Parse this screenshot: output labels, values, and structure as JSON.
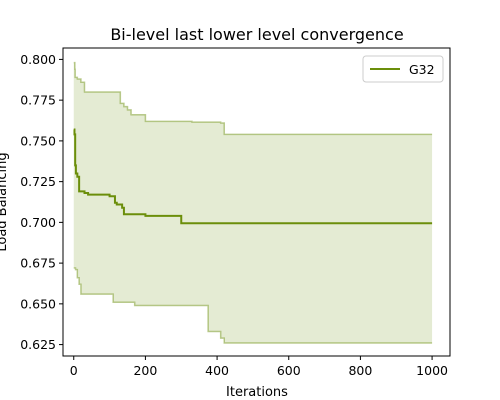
{
  "chart_data": {
    "type": "line",
    "title": "Bi-level last lower level convergence",
    "xlabel": "Iterations",
    "ylabel": "Load Balancing",
    "xlim": [
      -30,
      1050
    ],
    "ylim": [
      0.618,
      0.807
    ],
    "xticks": [
      0,
      200,
      400,
      600,
      800,
      1000
    ],
    "yticks": [
      0.625,
      0.65,
      0.675,
      0.7,
      0.725,
      0.75,
      0.775,
      0.8
    ],
    "xtick_labels": [
      "0",
      "200",
      "400",
      "600",
      "800",
      "1000"
    ],
    "ytick_labels": [
      "0.625",
      "0.650",
      "0.675",
      "0.700",
      "0.725",
      "0.750",
      "0.775",
      "0.800"
    ],
    "grid": false,
    "legend_position": "top-right",
    "series": [
      {
        "name": "G32",
        "color": "#6b8e0a",
        "mean": {
          "x": [
            0,
            2,
            4,
            6,
            10,
            12,
            15,
            20,
            30,
            40,
            60,
            80,
            100,
            110,
            115,
            120,
            135,
            140,
            150,
            200,
            210,
            300,
            1000
          ],
          "y": [
            0.757,
            0.754,
            0.735,
            0.73,
            0.728,
            0.728,
            0.719,
            0.719,
            0.718,
            0.717,
            0.717,
            0.717,
            0.716,
            0.716,
            0.712,
            0.711,
            0.709,
            0.705,
            0.705,
            0.704,
            0.704,
            0.6995,
            0.6995
          ]
        },
        "upper": {
          "x": [
            0,
            1,
            3,
            4,
            10,
            20,
            30,
            40,
            130,
            140,
            150,
            160,
            200,
            330,
            410,
            420,
            1000
          ],
          "y": [
            0.798,
            0.798,
            0.794,
            0.789,
            0.788,
            0.786,
            0.78,
            0.78,
            0.773,
            0.771,
            0.769,
            0.766,
            0.762,
            0.7615,
            0.761,
            0.754,
            0.754
          ]
        },
        "lower": {
          "x": [
            0,
            5,
            10,
            15,
            20,
            105,
            110,
            165,
            170,
            370,
            375,
            400,
            410,
            420,
            1000
          ],
          "y": [
            0.672,
            0.671,
            0.666,
            0.662,
            0.656,
            0.656,
            0.651,
            0.651,
            0.649,
            0.649,
            0.633,
            0.633,
            0.629,
            0.626,
            0.626
          ]
        }
      }
    ]
  }
}
